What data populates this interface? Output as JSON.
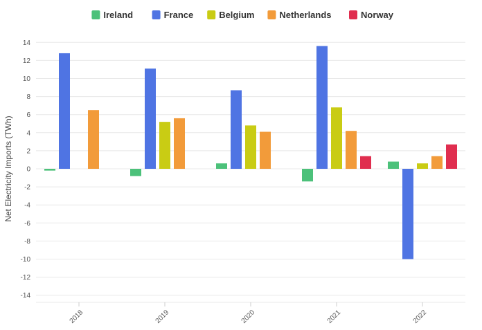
{
  "chart_data": {
    "type": "bar",
    "title": "",
    "xlabel": "",
    "ylabel": "Net Electricity Imports (TWh)",
    "categories": [
      "2018",
      "2019",
      "2020",
      "2021",
      "2022"
    ],
    "ylim": [
      -15,
      15
    ],
    "yticks": [
      14,
      12,
      10,
      8,
      6,
      4,
      2,
      0,
      -2,
      -4,
      -6,
      -8,
      -10,
      -12,
      -14
    ],
    "grid": true,
    "legend_position": "top",
    "series": [
      {
        "name": "Ireland",
        "color": "#4cc17a",
        "values": [
          -0.2,
          -0.8,
          0.6,
          -1.4,
          0.8
        ]
      },
      {
        "name": "France",
        "color": "#4f74e3",
        "values": [
          12.8,
          11.1,
          8.7,
          13.6,
          -10.0
        ]
      },
      {
        "name": "Belgium",
        "color": "#c9cc14",
        "values": [
          null,
          5.2,
          4.8,
          6.8,
          0.6
        ]
      },
      {
        "name": "Netherlands",
        "color": "#f29b3a",
        "values": [
          6.5,
          5.6,
          4.1,
          4.2,
          1.4
        ]
      },
      {
        "name": "Norway",
        "color": "#e02e4f",
        "values": [
          null,
          null,
          null,
          1.4,
          2.7
        ]
      }
    ]
  }
}
